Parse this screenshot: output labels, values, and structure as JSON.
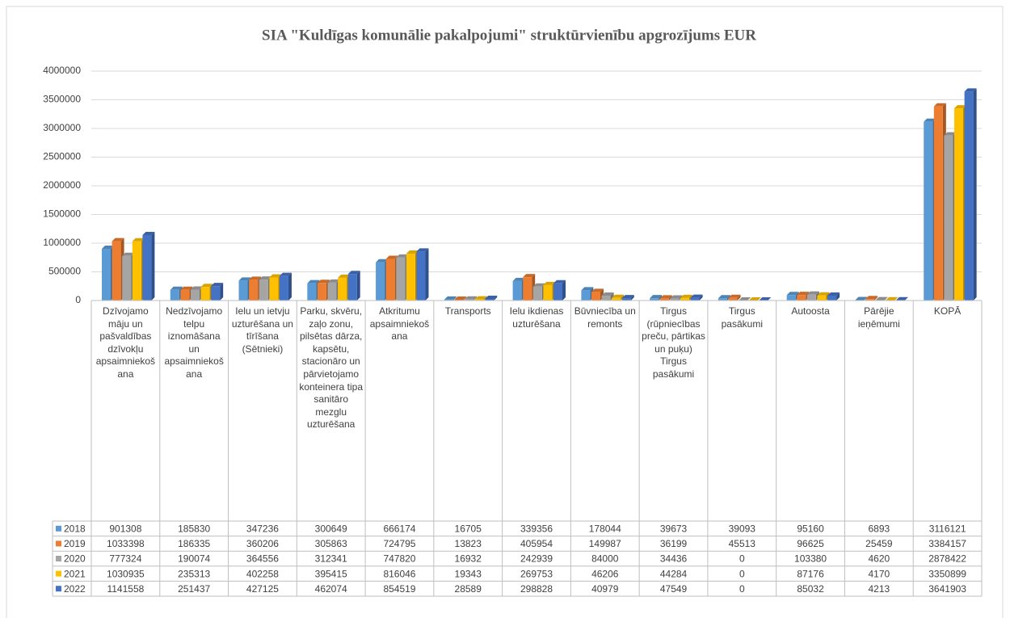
{
  "chart_data": {
    "type": "bar",
    "title": "SIA \"Kuldīgas komunālie pakalpojumi\" struktūrvienību apgrozījums EUR",
    "categories": [
      "Dzīvojamo māju un pašvaldības dzīvokļu apsaimniekošana",
      "Nedzīvojamo telpu iznomāšana un apsaimniekošana",
      "Ielu un ietvju uzturēšana un tīrīšana (Sētnieki)",
      "Parku, skvēru, zaļo zonu, pilsētas dārza, kapsētu, stacionāro un pārvietojamo konteinera tipa sanitāro mezglu uzturēšana",
      "Atkritumu apsaimniekošana",
      "Transports",
      "Ielu ikdienas uzturēšana",
      "Būvniecība un remonts",
      "Tirgus (rūpniecības preču, pārtikas un puķu) Tirgus pasākumi",
      "Tirgus pasākumi",
      "Autoosta",
      "Pārējie ieņēmumi",
      "KOPĀ"
    ],
    "series": [
      {
        "name": "2018",
        "color": "#5b9bd5",
        "values": [
          901308,
          185830,
          347236,
          300649,
          666174,
          16705,
          339356,
          178044,
          39673,
          39093,
          95160,
          6893,
          3116121
        ]
      },
      {
        "name": "2019",
        "color": "#ed7d31",
        "values": [
          1033398,
          186335,
          360206,
          305863,
          724795,
          13823,
          405954,
          149987,
          36199,
          45513,
          96625,
          25459,
          3384157
        ]
      },
      {
        "name": "2020",
        "color": "#a5a5a5",
        "values": [
          777324,
          190074,
          364556,
          312341,
          747820,
          16932,
          242939,
          84000,
          34436,
          0,
          103380,
          4620,
          2878422
        ]
      },
      {
        "name": "2021",
        "color": "#ffc000",
        "values": [
          1030935,
          235313,
          402258,
          395415,
          816046,
          19343,
          269753,
          46206,
          44284,
          0,
          87176,
          4170,
          3350899
        ]
      },
      {
        "name": "2022",
        "color": "#4472c4",
        "values": [
          1141558,
          251437,
          427125,
          462074,
          854519,
          28589,
          298828,
          40979,
          47549,
          0,
          85032,
          4213,
          3641903
        ]
      }
    ],
    "ylim": [
      0,
      4000000
    ],
    "yticks": [
      0,
      500000,
      1000000,
      1500000,
      2000000,
      2500000,
      3000000,
      3500000,
      4000000
    ],
    "grid": true
  }
}
